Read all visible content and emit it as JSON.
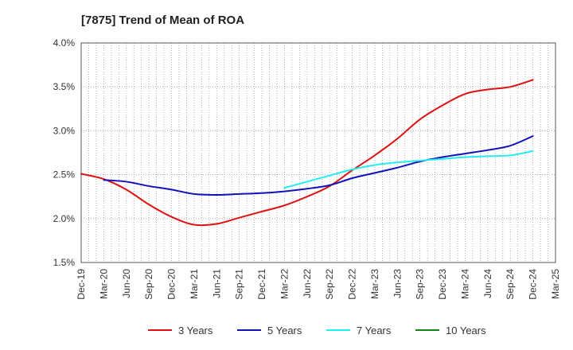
{
  "chart_data": {
    "type": "line",
    "title": "[7875]  Trend of Mean of ROA",
    "xlabel": "",
    "ylabel": "",
    "ylim": [
      1.5,
      4.0
    ],
    "y_ticks": [
      "1.5%",
      "2.0%",
      "2.5%",
      "3.0%",
      "3.5%",
      "4.0%"
    ],
    "y_tick_values": [
      1.5,
      2.0,
      2.5,
      3.0,
      3.5,
      4.0
    ],
    "categories": [
      "Dec-19",
      "Mar-20",
      "Jun-20",
      "Sep-20",
      "Dec-20",
      "Mar-21",
      "Jun-21",
      "Sep-21",
      "Dec-21",
      "Mar-22",
      "Jun-22",
      "Sep-22",
      "Dec-22",
      "Mar-23",
      "Jun-23",
      "Sep-23",
      "Dec-23",
      "Mar-24",
      "Jun-24",
      "Sep-24",
      "Dec-24",
      "Mar-25"
    ],
    "grid": true,
    "legend_position": "bottom",
    "series": [
      {
        "name": "3 Years",
        "color": "#dd1111",
        "values": [
          2.51,
          2.45,
          2.33,
          2.16,
          2.02,
          1.93,
          1.94,
          2.01,
          2.08,
          2.15,
          2.25,
          2.37,
          2.55,
          2.72,
          2.91,
          3.13,
          3.29,
          3.42,
          3.47,
          3.5,
          3.58,
          null
        ]
      },
      {
        "name": "5 Years",
        "color": "#1111bb",
        "values": [
          null,
          2.44,
          2.42,
          2.37,
          2.33,
          2.28,
          2.27,
          2.28,
          2.29,
          2.31,
          2.34,
          2.38,
          2.46,
          2.52,
          2.58,
          2.65,
          2.7,
          2.74,
          2.78,
          2.83,
          2.94,
          null
        ]
      },
      {
        "name": "7 Years",
        "color": "#22eeee",
        "values": [
          null,
          null,
          null,
          null,
          null,
          null,
          null,
          null,
          null,
          2.35,
          2.42,
          2.49,
          2.56,
          2.61,
          2.64,
          2.66,
          2.68,
          2.7,
          2.71,
          2.72,
          2.77,
          null
        ]
      },
      {
        "name": "10 Years",
        "color": "#118811",
        "values": [
          null,
          null,
          null,
          null,
          null,
          null,
          null,
          null,
          null,
          null,
          null,
          null,
          null,
          null,
          null,
          null,
          null,
          null,
          null,
          null,
          null,
          null
        ]
      }
    ]
  }
}
